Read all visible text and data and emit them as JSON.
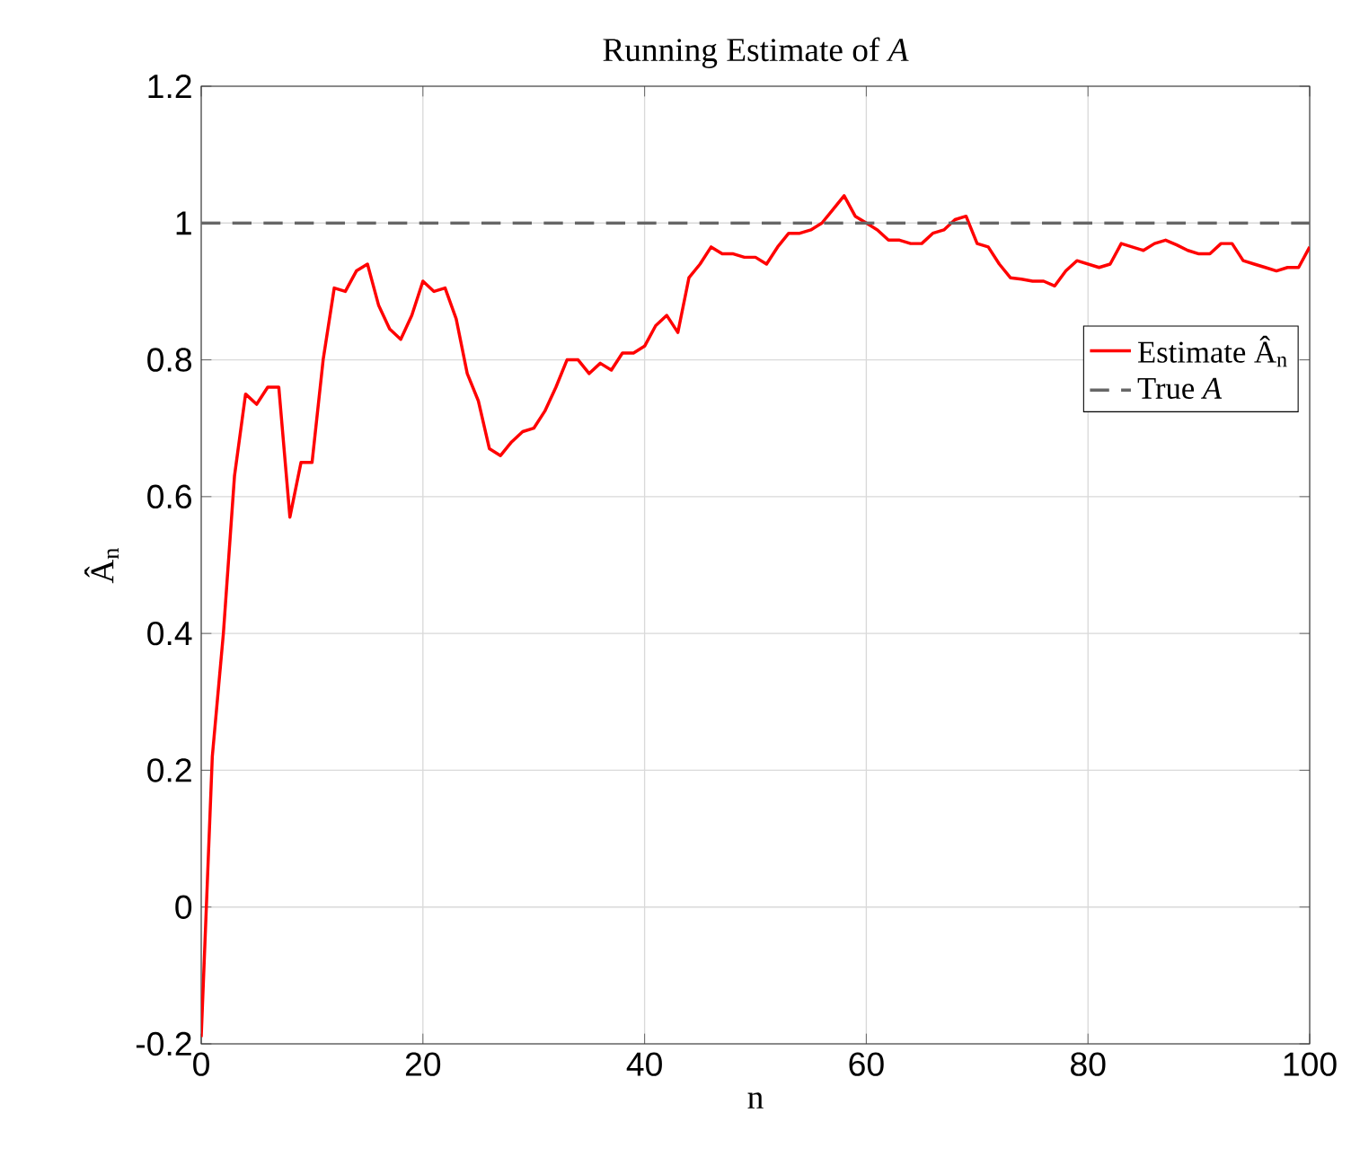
{
  "chart_data": {
    "type": "line",
    "title": "Running Estimate of *A*",
    "xlabel": "n",
    "ylabel": "Â$_{n}$",
    "x": [
      0,
      1,
      2,
      3,
      4,
      5,
      6,
      7,
      8,
      9,
      10,
      11,
      12,
      13,
      14,
      15,
      16,
      17,
      18,
      19,
      20,
      21,
      22,
      23,
      24,
      25,
      26,
      27,
      28,
      29,
      30,
      31,
      32,
      33,
      34,
      35,
      36,
      37,
      38,
      39,
      40,
      41,
      42,
      43,
      44,
      45,
      46,
      47,
      48,
      49,
      50,
      51,
      52,
      53,
      54,
      55,
      56,
      57,
      58,
      59,
      60,
      61,
      62,
      63,
      64,
      65,
      66,
      67,
      68,
      69,
      70,
      71,
      72,
      73,
      74,
      75,
      76,
      77,
      78,
      79,
      80,
      81,
      82,
      83,
      84,
      85,
      86,
      87,
      88,
      89,
      90,
      91,
      92,
      93,
      94,
      95,
      96,
      97,
      98,
      99,
      100
    ],
    "series": [
      {
        "name": "Estimate Â$_{n}$",
        "color": "#ff0000",
        "line_style": "solid",
        "values": [
          -0.19,
          0.22,
          0.4,
          0.63,
          0.75,
          0.735,
          0.76,
          0.76,
          0.57,
          0.65,
          0.65,
          0.8,
          0.905,
          0.9,
          0.93,
          0.94,
          0.88,
          0.845,
          0.83,
          0.865,
          0.915,
          0.9,
          0.905,
          0.86,
          0.78,
          0.74,
          0.67,
          0.66,
          0.68,
          0.695,
          0.7,
          0.725,
          0.76,
          0.8,
          0.8,
          0.78,
          0.795,
          0.785,
          0.81,
          0.81,
          0.82,
          0.85,
          0.865,
          0.84,
          0.92,
          0.94,
          0.965,
          0.955,
          0.955,
          0.95,
          0.95,
          0.94,
          0.965,
          0.985,
          0.985,
          0.99,
          1.0,
          1.02,
          1.04,
          1.01,
          1.0,
          0.99,
          0.975,
          0.975,
          0.97,
          0.97,
          0.985,
          0.99,
          1.005,
          1.01,
          0.97,
          0.965,
          0.94,
          0.92,
          0.918,
          0.915,
          0.915,
          0.908,
          0.93,
          0.945,
          0.94,
          0.935,
          0.94,
          0.97,
          0.965,
          0.96,
          0.97,
          0.975,
          0.968,
          0.96,
          0.955,
          0.955,
          0.97,
          0.97,
          0.945,
          0.94,
          0.935,
          0.93,
          0.935,
          0.935,
          0.965
        ]
      }
    ],
    "ref_lines": [
      {
        "axis": "y",
        "value": 1,
        "label": "True *A*",
        "color": "#666666",
        "line_style": "dashed"
      }
    ],
    "xlim": [
      0,
      100
    ],
    "ylim": [
      -0.2,
      1.2
    ],
    "xticks": [
      0,
      20,
      40,
      60,
      80,
      100
    ],
    "yticks": [
      -0.2,
      0,
      0.2,
      0.4,
      0.6,
      0.8,
      1,
      1.2
    ],
    "grid": true,
    "legend": "right"
  }
}
